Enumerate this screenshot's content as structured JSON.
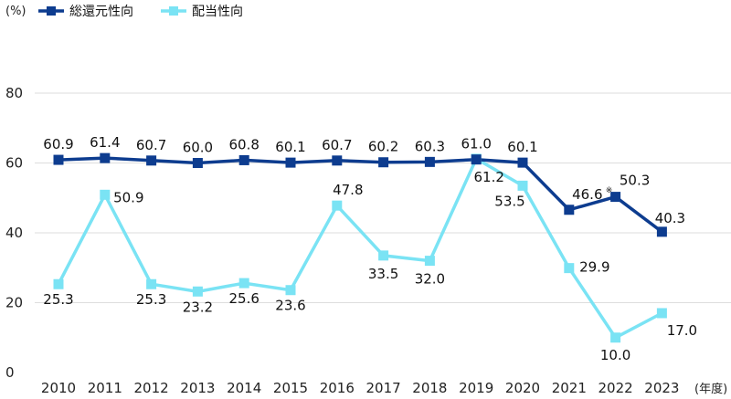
{
  "chart_data": {
    "type": "line",
    "ylabel": "(%)",
    "xlabel": "(年度)",
    "ylim": [
      0,
      80
    ],
    "yticks": [
      "0",
      "20",
      "40",
      "60",
      "80"
    ],
    "categories": [
      "2010",
      "2011",
      "2012",
      "2013",
      "2014",
      "2015",
      "2016",
      "2017",
      "2018",
      "2019",
      "2020",
      "2021",
      "2022",
      "2023"
    ],
    "grid": true,
    "legend_position": "top-left",
    "series": [
      {
        "name": "総還元性向",
        "color": "#0d3c8f",
        "marker": "square",
        "values": [
          60.9,
          61.4,
          60.7,
          60.0,
          60.8,
          60.1,
          60.7,
          60.2,
          60.3,
          61.0,
          60.1,
          46.6,
          50.3,
          40.3
        ],
        "labels": [
          "60.9",
          "61.4",
          "60.7",
          "60.0",
          "60.8",
          "60.1",
          "60.7",
          "60.2",
          "60.3",
          "61.0",
          "60.1",
          "46.6",
          "50.3",
          "40.3"
        ]
      },
      {
        "name": "配当性向",
        "color": "#7ae3f4",
        "marker": "square",
        "values": [
          25.3,
          50.9,
          25.3,
          23.2,
          25.6,
          23.6,
          47.8,
          33.5,
          32.0,
          61.2,
          53.5,
          29.9,
          10.0,
          17.0
        ],
        "labels": [
          "25.3",
          "50.9",
          "25.3",
          "23.2",
          "25.6",
          "23.6",
          "47.8",
          "33.5",
          "32.0",
          "61.2",
          "53.5",
          "29.9",
          "10.0",
          "17.0"
        ]
      }
    ],
    "annotations": [
      {
        "series": 0,
        "index": 11,
        "text": "※"
      }
    ]
  }
}
